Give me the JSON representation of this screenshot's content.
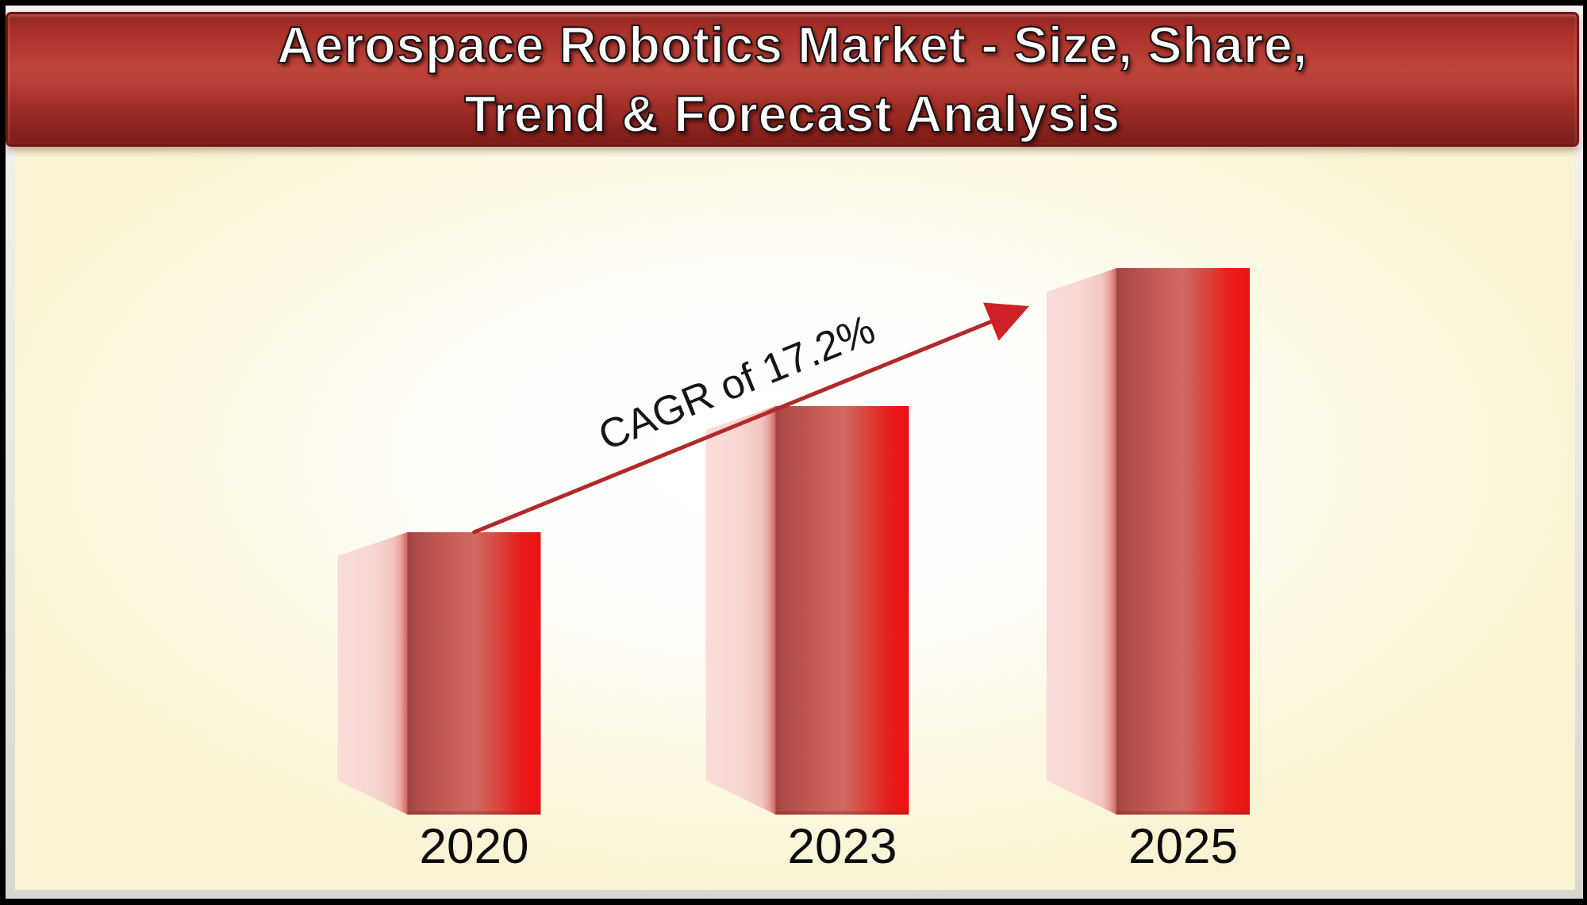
{
  "banner": {
    "title_line1": "Aerospace Robotics Market - Size, Share,",
    "title_line2": "Trend & Forecast Analysis"
  },
  "chart_data": {
    "type": "bar",
    "title": "Aerospace Robotics Market - Size, Share, Trend & Forecast Analysis",
    "categories": [
      "2020",
      "2023",
      "2025"
    ],
    "values": [
      356,
      515,
      689
    ],
    "value_note": "relative bar heights (no numeric value axis shown in image)",
    "annotation": "CAGR of 17.2%",
    "cagr_percent": 17.2,
    "grid": false,
    "value_axis_visible": false,
    "legend": "none",
    "bar_style": "3d red gradient columns with light pink left side face"
  },
  "colors": {
    "border_black": "#000000",
    "frame_silver": "#e9e7e2",
    "banner_red_mid": "#bc443a",
    "banner_border": "#6f1813",
    "title_text": "#ffffff",
    "body_cream": "#fbf6dc",
    "body_center_white": "#ffffff",
    "bar_front_red": "#e81c1c",
    "bar_front_dark": "#a84a44",
    "bar_side_pink": "#f7d8d4",
    "arrow_red": "#b02a2c",
    "arrow_head_red": "#cf2127",
    "label_text": "#0d0d0d"
  }
}
